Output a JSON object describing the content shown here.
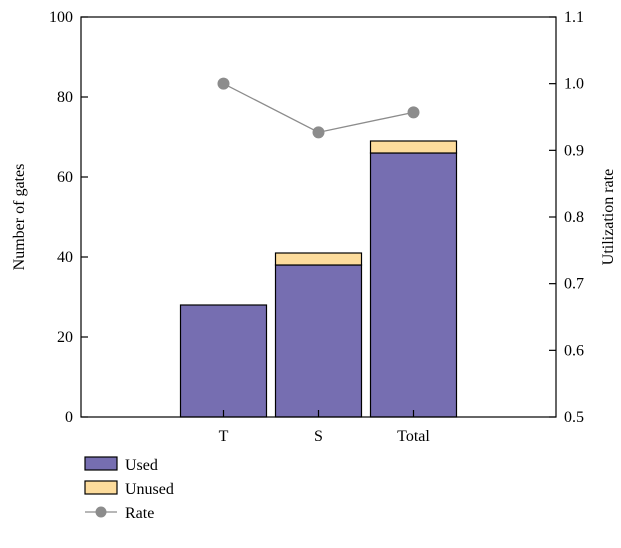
{
  "chart_data": {
    "type": "bar",
    "stacked": true,
    "categories": [
      "T",
      "S",
      "Total"
    ],
    "series": [
      {
        "name": "Used",
        "values": [
          28,
          38,
          66
        ],
        "color": "#766eb1",
        "axis": "left"
      },
      {
        "name": "Unused",
        "values": [
          0,
          3,
          3
        ],
        "color": "#fddc9c",
        "axis": "left"
      }
    ],
    "line_series": {
      "name": "Rate",
      "values": [
        1.0,
        0.927,
        0.957
      ],
      "color": "#8c8c8c",
      "axis": "right"
    },
    "ylabel": "Number of gates",
    "y2label": "Utilization rate",
    "ylim": [
      0,
      100
    ],
    "y2lim": [
      0.5,
      1.1
    ],
    "yticks": [
      "0",
      "20",
      "40",
      "60",
      "80",
      "100"
    ],
    "y2ticks": [
      "0.5",
      "0.6",
      "0.7",
      "0.8",
      "0.9",
      "1.0",
      "1.1"
    ],
    "grid": false,
    "legend": "bottom-left"
  }
}
